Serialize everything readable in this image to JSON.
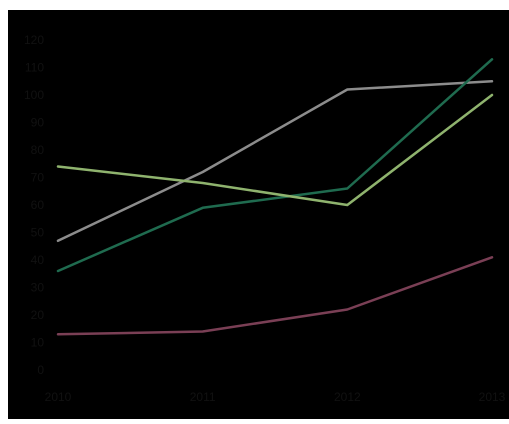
{
  "chart_data": {
    "type": "line",
    "x": [
      "2010",
      "2011",
      "2012",
      "2013"
    ],
    "y_ticks": [
      "0",
      "10",
      "20",
      "30",
      "40",
      "50",
      "60",
      "70",
      "80",
      "90",
      "100",
      "110",
      "120"
    ],
    "ylim": [
      0,
      120
    ],
    "grid": false,
    "legend": "none",
    "background": "#000000",
    "series": [
      {
        "color": "#8c8c8c",
        "values": [
          47,
          72,
          102,
          105
        ]
      },
      {
        "color": "#1f6b4f",
        "values": [
          36,
          59,
          66,
          113
        ]
      },
      {
        "color": "#8fb36e",
        "values": [
          74,
          68,
          60,
          100
        ]
      },
      {
        "color": "#7a3f55",
        "values": [
          13,
          14,
          22,
          41
        ]
      }
    ]
  }
}
